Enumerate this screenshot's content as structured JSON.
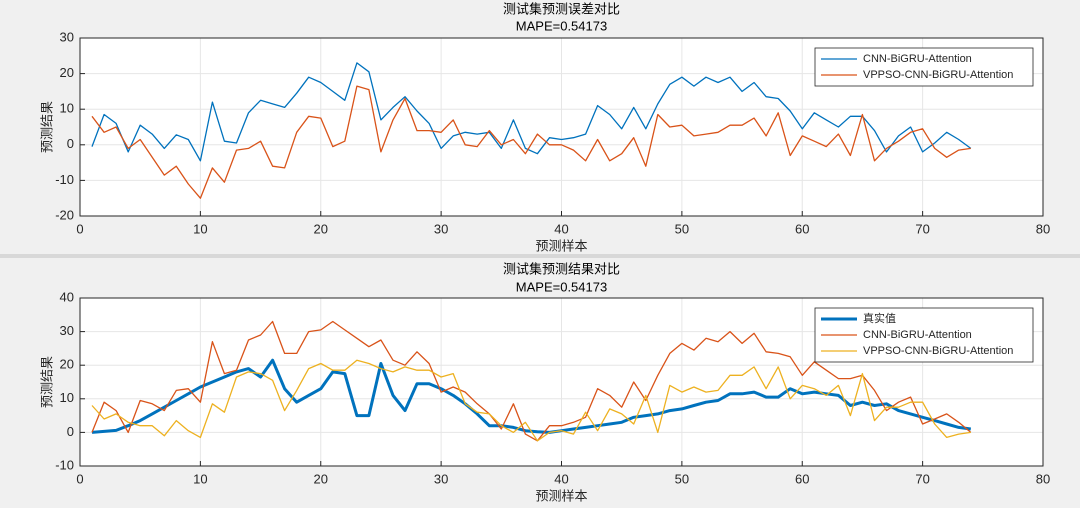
{
  "chart_data": [
    {
      "type": "line",
      "title": "测试集预测误差对比",
      "subtitle": "MAPE=0.54173",
      "x_label": "预测样本",
      "y_label": "预测结果",
      "x": [
        1,
        2,
        3,
        4,
        5,
        6,
        7,
        8,
        9,
        10,
        11,
        12,
        13,
        14,
        15,
        16,
        17,
        18,
        19,
        20,
        21,
        22,
        23,
        24,
        25,
        26,
        27,
        28,
        29,
        30,
        31,
        32,
        33,
        34,
        35,
        36,
        37,
        38,
        39,
        40,
        41,
        42,
        43,
        44,
        45,
        46,
        47,
        48,
        49,
        50,
        51,
        52,
        53,
        54,
        55,
        56,
        57,
        58,
        59,
        60,
        61,
        62,
        63,
        64,
        65,
        66,
        67,
        68,
        69,
        70,
        71,
        72,
        73,
        74
      ],
      "series": [
        {
          "name": "CNN-BiGRU-Attention",
          "color": "#0072bd",
          "linewidth": 1.3,
          "values": [
            -0.5,
            8.5,
            6,
            -2,
            5.5,
            3,
            -1,
            2.8,
            1.5,
            -4.5,
            12,
            1,
            0.5,
            9,
            12.5,
            11.5,
            10.5,
            14.5,
            19,
            17.5,
            15,
            12.5,
            23,
            20.5,
            7,
            10.5,
            13.5,
            9.5,
            6,
            -1,
            2.5,
            3.5,
            3,
            3.5,
            -1,
            7,
            -1,
            -2.5,
            2,
            1.5,
            2,
            3,
            11,
            8.5,
            4.5,
            10.5,
            4.5,
            11.5,
            17,
            19,
            16.5,
            19,
            17.5,
            19,
            15,
            17.5,
            13.5,
            13,
            9.5,
            4.5,
            9,
            7,
            5,
            8,
            8,
            4,
            -2,
            2.5,
            5,
            -2,
            0.5,
            3.5,
            1.5,
            -1
          ]
        },
        {
          "name": "VPPSO-CNN-BiGRU-Attention",
          "color": "#d95319",
          "linewidth": 1.3,
          "values": [
            8,
            3.5,
            5,
            -1,
            1.5,
            -3.5,
            -8.5,
            -6,
            -11,
            -15,
            -6.5,
            -10.5,
            -1.5,
            -1,
            1,
            -6,
            -6.5,
            3.5,
            8,
            7.5,
            -0.5,
            1,
            16.5,
            15.5,
            -2,
            7,
            13,
            4,
            4,
            3.5,
            7,
            0,
            -0.5,
            4,
            0,
            1.5,
            -2.5,
            3,
            0,
            0,
            -1.5,
            -4.5,
            1.5,
            -4.5,
            -2.5,
            2,
            -6,
            8.5,
            5,
            5.5,
            2.5,
            3,
            3.5,
            5.5,
            5.5,
            7.5,
            2.5,
            9,
            -3,
            2.5,
            1,
            -0.5,
            3,
            -3,
            8.5,
            -4.5,
            -1,
            1,
            3.5,
            4.5,
            -1,
            -3.5,
            -1.5,
            -1
          ]
        }
      ],
      "xlim": [
        0,
        80
      ],
      "xticks": [
        0,
        10,
        20,
        30,
        40,
        50,
        60,
        70,
        80
      ],
      "ylim": [
        -20,
        30
      ],
      "yticks": [
        -20,
        -10,
        0,
        10,
        20,
        30
      ],
      "grid": true,
      "legend": "northeast"
    },
    {
      "type": "line",
      "title": "测试集预测结果对比",
      "subtitle": "MAPE=0.54173",
      "x_label": "预测样本",
      "y_label": "预测结果",
      "x": [
        1,
        2,
        3,
        4,
        5,
        6,
        7,
        8,
        9,
        10,
        11,
        12,
        13,
        14,
        15,
        16,
        17,
        18,
        19,
        20,
        21,
        22,
        23,
        24,
        25,
        26,
        27,
        28,
        29,
        30,
        31,
        32,
        33,
        34,
        35,
        36,
        37,
        38,
        39,
        40,
        41,
        42,
        43,
        44,
        45,
        46,
        47,
        48,
        49,
        50,
        51,
        52,
        53,
        54,
        55,
        56,
        57,
        58,
        59,
        60,
        61,
        62,
        63,
        64,
        65,
        66,
        67,
        68,
        69,
        70,
        71,
        72,
        73,
        74
      ],
      "series": [
        {
          "name": "真实值",
          "color": "#0072bd",
          "linewidth": 3,
          "values": [
            0,
            0.3,
            0.6,
            2,
            3.5,
            5.5,
            7.5,
            9.5,
            11.5,
            13.5,
            15,
            16.5,
            18,
            19,
            16.5,
            21.5,
            13,
            9,
            11,
            13,
            18,
            17.5,
            5,
            5,
            20.5,
            11,
            6.5,
            14.5,
            14.5,
            13,
            11,
            8.5,
            5.5,
            2,
            2,
            1.5,
            0.5,
            0.2,
            0,
            0.5,
            1,
            1.5,
            2,
            2.5,
            3,
            4.5,
            5,
            5.5,
            6.5,
            7,
            8,
            9,
            9.5,
            11.5,
            11.5,
            12,
            10.5,
            10.5,
            13,
            11.5,
            12,
            11.5,
            11,
            8,
            9,
            8,
            8.5,
            6.5,
            5.5,
            4.5,
            3.5,
            2.5,
            1.5,
            1
          ]
        },
        {
          "name": "CNN-BiGRU-Attention",
          "color": "#d95319",
          "linewidth": 1.3,
          "values": [
            0,
            9,
            6.5,
            0,
            9.5,
            8.5,
            6.5,
            12.5,
            13,
            9,
            27,
            17.5,
            18.5,
            27.5,
            29,
            33,
            23.5,
            23.5,
            30,
            30.5,
            33,
            30.5,
            28,
            25.5,
            27.5,
            21.5,
            20,
            24,
            20.5,
            12,
            13.5,
            12,
            8.5,
            5.5,
            1,
            8.5,
            -0.5,
            -2.5,
            2,
            2,
            3,
            4.5,
            13,
            11,
            7.5,
            15,
            9.5,
            17,
            23.5,
            26.5,
            24.5,
            28,
            27,
            30,
            26.5,
            29.5,
            24,
            23.5,
            22.5,
            17,
            21,
            18.5,
            16,
            16,
            17,
            12.5,
            6.5,
            9,
            10.5,
            2.5,
            4,
            5.5,
            3,
            0
          ]
        },
        {
          "name": "VPPSO-CNN-BiGRU-Attention",
          "color": "#edb120",
          "linewidth": 1.3,
          "values": [
            8,
            4,
            5.5,
            3,
            2,
            2,
            -1,
            3.5,
            0.5,
            -1.5,
            8.5,
            6,
            16.5,
            18,
            17.5,
            15.5,
            6.5,
            12.5,
            19,
            20.5,
            18.5,
            18.5,
            21.5,
            20.5,
            19,
            18,
            19.5,
            18.5,
            18.5,
            16.5,
            17.5,
            8.5,
            6,
            5.5,
            2,
            0,
            3,
            -2.5,
            0,
            0.5,
            -0.5,
            6,
            0.5,
            7,
            5.5,
            2.5,
            11,
            0,
            14,
            12,
            13.5,
            12,
            12.5,
            17,
            17,
            19.5,
            13,
            19.5,
            10,
            14,
            13,
            11,
            14,
            5,
            17.5,
            3.5,
            7.5,
            7.5,
            9,
            9,
            2.5,
            -1.5,
            -0.5,
            0
          ]
        }
      ],
      "xlim": [
        0,
        80
      ],
      "xticks": [
        0,
        10,
        20,
        30,
        40,
        50,
        60,
        70,
        80
      ],
      "ylim": [
        -10,
        40
      ],
      "yticks": [
        -10,
        0,
        10,
        20,
        30,
        40
      ],
      "grid": true,
      "legend": "northeast"
    }
  ]
}
